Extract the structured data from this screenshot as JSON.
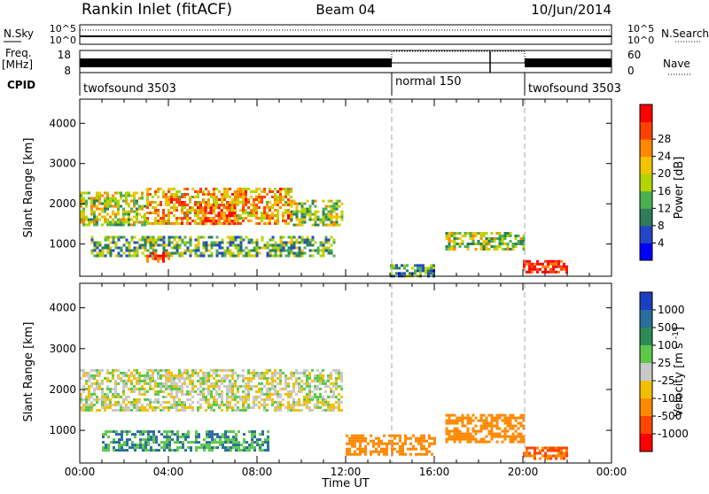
{
  "header": {
    "site": "Rankin Inlet (fitACF)",
    "beam": "Beam 04",
    "date": "10/Jun/2014"
  },
  "noise_panel": {
    "left_label": "N.Sky",
    "left_ticks": [
      "10^5",
      "10^0"
    ],
    "right_label": "N.Search",
    "right_ticks": [
      "10^5",
      "10^0"
    ]
  },
  "freq_panel": {
    "left_label": "Freq.",
    "left_unit": "[MHz]",
    "left_ticks": [
      "18",
      "8"
    ],
    "right_label": "Nave",
    "right_ticks": [
      "60",
      "0"
    ]
  },
  "cpid_panel": {
    "label": "CPID",
    "segments": [
      {
        "name": "twofsound 3503",
        "start": "00:00",
        "end": "14:00"
      },
      {
        "name": "normal 150",
        "start": "14:00",
        "end": "20:00"
      },
      {
        "name": "twofsound 3503",
        "start": "20:00",
        "end": "24:00"
      }
    ]
  },
  "time_axis": {
    "label": "Time UT",
    "ticks": [
      "00:00",
      "04:00",
      "08:00",
      "12:00",
      "16:00",
      "20:00",
      "00:00"
    ]
  },
  "range_axis": {
    "label": "Slant Range [km]",
    "ticks": [
      "1000",
      "2000",
      "3000",
      "4000"
    ]
  },
  "power_colorbar": {
    "title": "Power [dB]",
    "ticks": [
      "4",
      "8",
      "12",
      "16",
      "20",
      "24",
      "28"
    ],
    "colors": [
      "#0000ff",
      "#2345c8",
      "#2e7d5a",
      "#4caf50",
      "#b4d400",
      "#f2c400",
      "#ff8800",
      "#ff4000",
      "#ff0000"
    ]
  },
  "velocity_colorbar": {
    "title": "Velocity [m s^-1]",
    "ticks": [
      "1000",
      "500",
      "100",
      "25",
      "-25",
      "-100",
      "-500",
      "-1000"
    ],
    "colors": [
      "#1a3fbf",
      "#2a6e9a",
      "#2e8b57",
      "#5cc84a",
      "#c8c8c8",
      "#f0c000",
      "#ff8800",
      "#ff4500",
      "#ff0000"
    ]
  },
  "chart_data": [
    {
      "type": "heatmap",
      "title": "Power [dB]",
      "xlabel": "Time UT",
      "ylabel": "Slant Range [km]",
      "xlim": [
        "00:00",
        "24:00"
      ],
      "ylim": [
        200,
        4600
      ],
      "legend_position": "right",
      "series": [
        {
          "start_ut": 0.0,
          "end_ut": 3.0,
          "range_km": [
            1500,
            2300
          ],
          "value_db": 16
        },
        {
          "start_ut": 3.0,
          "end_ut": 9.5,
          "range_km": [
            1500,
            2400
          ],
          "value_db": 20
        },
        {
          "start_ut": 0.5,
          "end_ut": 11.5,
          "range_km": [
            700,
            1200
          ],
          "value_db": 12
        },
        {
          "start_ut": 3.0,
          "end_ut": 4.0,
          "range_km": [
            600,
            800
          ],
          "value_db": 26
        },
        {
          "start_ut": 5.5,
          "end_ut": 7.0,
          "range_km": [
            1500,
            2000
          ],
          "value_db": 24
        },
        {
          "start_ut": 9.5,
          "end_ut": 11.8,
          "range_km": [
            1500,
            2100
          ],
          "value_db": 14
        },
        {
          "start_ut": 14.0,
          "end_ut": 16.0,
          "range_km": [
            200,
            500
          ],
          "value_db": 10
        },
        {
          "start_ut": 16.5,
          "end_ut": 20.0,
          "range_km": [
            900,
            1300
          ],
          "value_db": 14
        },
        {
          "start_ut": 20.0,
          "end_ut": 22.0,
          "range_km": [
            300,
            600
          ],
          "value_db": 28
        }
      ]
    },
    {
      "type": "heatmap",
      "title": "Velocity [m s^-1]",
      "xlabel": "Time UT",
      "ylabel": "Slant Range [km]",
      "xlim": [
        "00:00",
        "24:00"
      ],
      "ylim": [
        200,
        4600
      ],
      "legend_position": "right",
      "series": [
        {
          "start_ut": 0.0,
          "end_ut": 11.8,
          "range_km": [
            1500,
            2500
          ],
          "value_ms": 0
        },
        {
          "start_ut": 1.0,
          "end_ut": 8.5,
          "range_km": [
            500,
            1000
          ],
          "value_ms": 100
        },
        {
          "start_ut": 12.0,
          "end_ut": 16.0,
          "range_km": [
            400,
            900
          ],
          "value_ms": -300
        },
        {
          "start_ut": 16.5,
          "end_ut": 20.0,
          "range_km": [
            700,
            1400
          ],
          "value_ms": -200
        },
        {
          "start_ut": 20.0,
          "end_ut": 22.0,
          "range_km": [
            300,
            600
          ],
          "value_ms": -500
        }
      ]
    }
  ]
}
